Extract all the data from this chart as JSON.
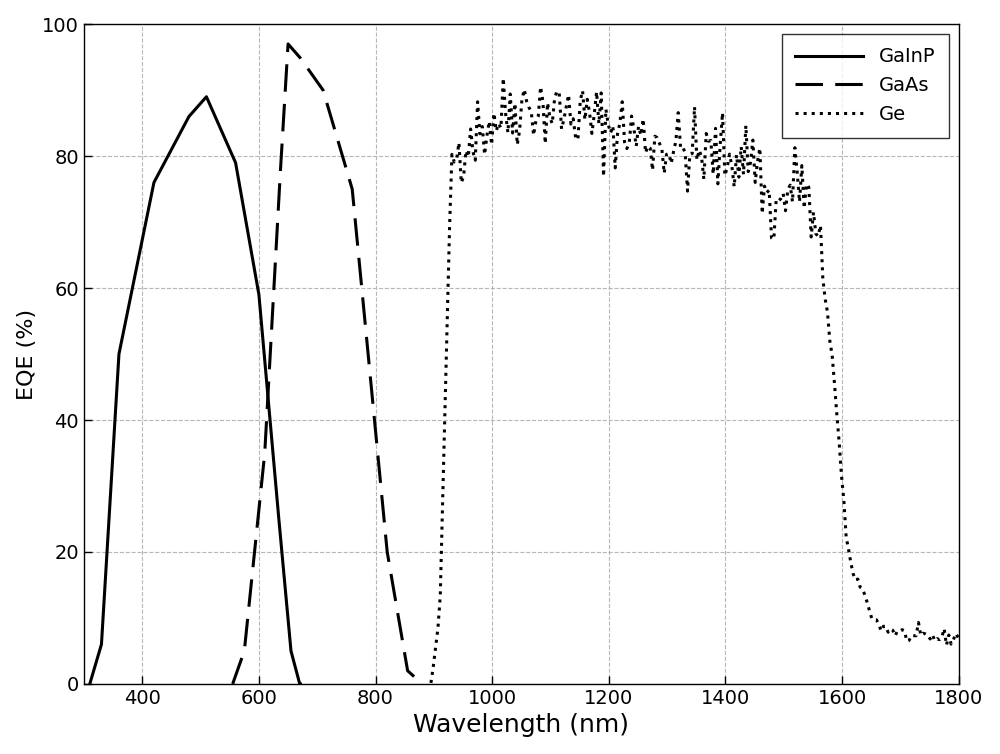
{
  "title": "",
  "xlabel": "Wavelength (nm)",
  "ylabel": "EQE (%)",
  "xlim": [
    300,
    1800
  ],
  "ylim": [
    0,
    100
  ],
  "xticks": [
    400,
    600,
    800,
    1000,
    1200,
    1400,
    1600,
    1800
  ],
  "yticks": [
    0,
    20,
    40,
    60,
    80,
    100
  ],
  "grid_color": "#b0b0b0",
  "line_color": "#000000",
  "background_color": "#ffffff",
  "legend_labels": [
    "GaInP",
    "GaAs",
    "Ge"
  ],
  "xlabel_fontsize": 18,
  "ylabel_fontsize": 16,
  "tick_fontsize": 14,
  "legend_fontsize": 14
}
